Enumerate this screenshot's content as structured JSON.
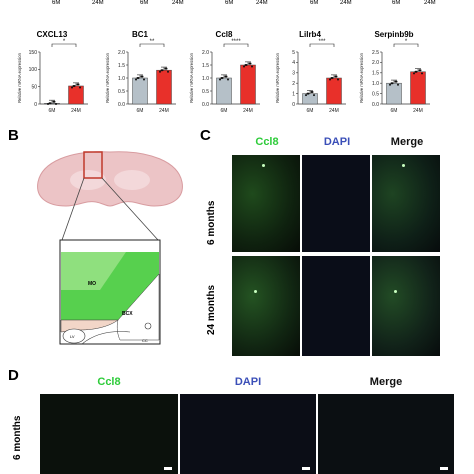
{
  "panelA": {
    "top_row_ticks": [
      "6M",
      "24M",
      "6M",
      "24M",
      "6M",
      "24M",
      "6M",
      "24M",
      "6M",
      "24M"
    ],
    "ylabel": "Relative mRNA expression",
    "colors": {
      "control": "#b5c0c8",
      "aged": "#e8302a"
    }
  },
  "chart_data": [
    {
      "type": "bar",
      "title": "CXCL13",
      "categories": [
        "6M",
        "24M"
      ],
      "values": [
        2,
        52
      ],
      "ylim": [
        0,
        150
      ],
      "yticks": [
        "0",
        "50",
        "100",
        "150"
      ],
      "significance": "*",
      "ylabel": "Relative mRNA expression"
    },
    {
      "type": "bar",
      "title": "BC1",
      "categories": [
        "6M",
        "24M"
      ],
      "values": [
        1.0,
        1.3
      ],
      "ylim": [
        0,
        2.0
      ],
      "yticks": [
        "0.0",
        "0.5",
        "1.0",
        "1.5",
        "2.0"
      ],
      "significance": "**",
      "ylabel": "Relative mRNA expression"
    },
    {
      "type": "bar",
      "title": "Ccl8",
      "categories": [
        "6M",
        "24M"
      ],
      "values": [
        1.0,
        1.5
      ],
      "ylim": [
        0,
        2.0
      ],
      "yticks": [
        "0.0",
        "0.5",
        "1.0",
        "1.5",
        "2.0"
      ],
      "significance": "****",
      "ylabel": "Relative mRNA expression"
    },
    {
      "type": "bar",
      "title": "Lilrb4",
      "categories": [
        "6M",
        "24M"
      ],
      "values": [
        1.0,
        2.5
      ],
      "ylim": [
        0,
        5
      ],
      "yticks": [
        "0",
        "1",
        "2",
        "3",
        "4",
        "5"
      ],
      "significance": "***",
      "ylabel": "Relative mRNA expression"
    },
    {
      "type": "bar",
      "title": "Serpinb9b",
      "categories": [
        "6M",
        "24M"
      ],
      "values": [
        1.0,
        1.55
      ],
      "ylim": [
        0,
        2.5
      ],
      "yticks": [
        "0.0",
        "0.5",
        "1.0",
        "1.5",
        "2.0",
        "2.5"
      ],
      "significance": "*",
      "ylabel": "Relative mRNA expression"
    }
  ],
  "panelB": {
    "letter": "B",
    "regions": {
      "mo": "MO",
      "bcx": "BCX",
      "lv": "LV",
      "cc": "CC"
    }
  },
  "panelC": {
    "letter": "C",
    "headers": [
      "Ccl8",
      "DAPI",
      "Merge"
    ],
    "rows": [
      "6 months",
      "24 months"
    ]
  },
  "panelD": {
    "letter": "D",
    "headers": [
      "Ccl8",
      "DAPI",
      "Merge"
    ],
    "rows": [
      "6 months"
    ]
  }
}
